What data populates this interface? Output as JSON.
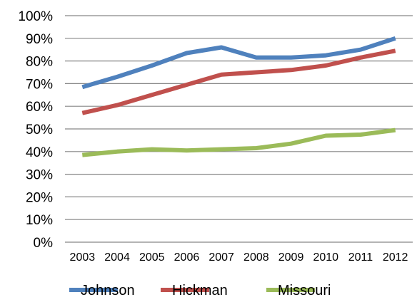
{
  "chart_data": {
    "type": "line",
    "title": "",
    "xlabel": "",
    "ylabel": "",
    "categories": [
      "2003",
      "2004",
      "2005",
      "2006",
      "2007",
      "2008",
      "2009",
      "2010",
      "2011",
      "2012"
    ],
    "yticks": [
      "0%",
      "10%",
      "20%",
      "30%",
      "40%",
      "50%",
      "60%",
      "70%",
      "80%",
      "90%",
      "100%"
    ],
    "ylim": [
      0,
      100
    ],
    "grid": true,
    "legend_position": "bottom",
    "series": [
      {
        "name": "Johnson",
        "color": "#4F81BD",
        "values": [
          68.5,
          73,
          78,
          83.5,
          86,
          81.5,
          81.5,
          82.5,
          85,
          90
        ]
      },
      {
        "name": "Hickman",
        "color": "#C0504D",
        "values": [
          57,
          60.5,
          65,
          69.5,
          74,
          75,
          76,
          78,
          81.5,
          84.5
        ]
      },
      {
        "name": "Missouri",
        "color": "#9BBB59",
        "values": [
          38.5,
          40,
          41,
          40.5,
          41,
          41.5,
          43.5,
          47,
          47.5,
          49.5
        ]
      }
    ]
  }
}
